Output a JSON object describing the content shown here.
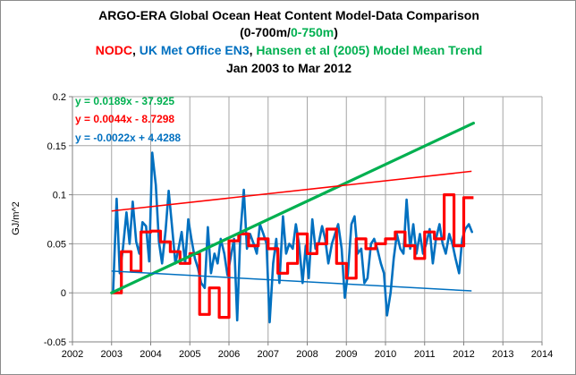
{
  "chart_data": {
    "type": "line",
    "title_line1": "ARGO-ERA Global Ocean Heat Content Model-Data Comparison",
    "title_line2": {
      "open": "(",
      "nodc_range": "0-700m",
      "slash": "/",
      "model_range": "0-750m",
      "close": ")"
    },
    "title_line3": {
      "nodc": "NODC",
      "sep1": ", ",
      "ukmo": "UK Met Office EN3",
      "sep2": ", ",
      "model": "Hansen et al (2005) Model Mean Trend"
    },
    "title_line4": "Jan 2003 to Mar 2012",
    "ylabel": "GJ/m^2",
    "xlabel": "",
    "xlim": [
      2002,
      2014
    ],
    "ylim": [
      -0.05,
      0.2
    ],
    "x_ticks": [
      "2002",
      "2003",
      "2004",
      "2005",
      "2006",
      "2007",
      "2008",
      "2009",
      "2010",
      "2011",
      "2012",
      "2013",
      "2014"
    ],
    "y_ticks": [
      "-0.05",
      "0",
      "0.05",
      "0.1",
      "0.15",
      "0.2"
    ],
    "gridlines": true,
    "colors": {
      "nodc": "#ff0000",
      "en3": "#0070c0",
      "model": "#00b050",
      "nodc_trend": "#ff0000",
      "en3_trend": "#0070c0",
      "grid": "#a6a6a6"
    },
    "trend_equations": [
      {
        "series": "model",
        "text": "y = 0.0189x - 37.925"
      },
      {
        "series": "nodc",
        "text": "y = 0.0044x - 8.7298"
      },
      {
        "series": "en3",
        "text": "y = -0.0022x + 4.4288"
      }
    ],
    "series": [
      {
        "name": "UK Met Office EN3",
        "color": "#0070c0",
        "x": [
          2003.04,
          2003.13,
          2003.21,
          2003.29,
          2003.38,
          2003.46,
          2003.54,
          2003.63,
          2003.71,
          2003.79,
          2003.88,
          2003.96,
          2004.04,
          2004.13,
          2004.21,
          2004.29,
          2004.38,
          2004.46,
          2004.54,
          2004.63,
          2004.71,
          2004.79,
          2004.88,
          2004.96,
          2005.04,
          2005.13,
          2005.21,
          2005.29,
          2005.38,
          2005.46,
          2005.54,
          2005.63,
          2005.71,
          2005.79,
          2005.88,
          2005.96,
          2006.04,
          2006.13,
          2006.21,
          2006.29,
          2006.38,
          2006.46,
          2006.54,
          2006.63,
          2006.71,
          2006.79,
          2006.88,
          2006.96,
          2007.04,
          2007.13,
          2007.21,
          2007.29,
          2007.38,
          2007.46,
          2007.54,
          2007.63,
          2007.71,
          2007.79,
          2007.88,
          2007.96,
          2008.04,
          2008.13,
          2008.21,
          2008.29,
          2008.38,
          2008.46,
          2008.54,
          2008.63,
          2008.71,
          2008.79,
          2008.88,
          2008.96,
          2009.04,
          2009.13,
          2009.21,
          2009.29,
          2009.38,
          2009.46,
          2009.54,
          2009.63,
          2009.71,
          2009.79,
          2009.88,
          2009.96,
          2010.04,
          2010.13,
          2010.21,
          2010.29,
          2010.38,
          2010.46,
          2010.54,
          2010.63,
          2010.71,
          2010.79,
          2010.88,
          2010.96,
          2011.04,
          2011.13,
          2011.21,
          2011.29,
          2011.38,
          2011.46,
          2011.54,
          2011.63,
          2011.71,
          2011.79,
          2011.88,
          2011.96,
          2012.04,
          2012.13,
          2012.21
        ],
        "values": [
          0.002,
          0.096,
          0.02,
          0.045,
          0.082,
          0.05,
          0.093,
          0.052,
          0.04,
          0.072,
          0.068,
          0.032,
          0.143,
          0.11,
          0.052,
          0.03,
          0.063,
          0.104,
          0.07,
          0.03,
          0.045,
          0.062,
          0.03,
          0.075,
          0.055,
          0.035,
          0.025,
          0.01,
          0.005,
          0.067,
          0.02,
          0.04,
          0.03,
          0.055,
          0.04,
          0.018,
          0.035,
          0.055,
          -0.028,
          0.06,
          0.105,
          0.045,
          0.06,
          0.05,
          0.04,
          0.07,
          0.06,
          0.05,
          -0.03,
          0.03,
          0.055,
          0.01,
          0.078,
          0.04,
          0.05,
          0.045,
          0.07,
          0.05,
          0.01,
          0.048,
          0.015,
          0.075,
          0.045,
          0.05,
          0.068,
          0.055,
          0.03,
          0.05,
          0.06,
          0.07,
          0.045,
          -0.005,
          0.02,
          0.07,
          0.078,
          0.04,
          0.045,
          0.01,
          0.015,
          0.05,
          0.055,
          0.045,
          0.03,
          0.02,
          -0.023,
          0.0,
          0.035,
          0.06,
          0.045,
          0.04,
          0.095,
          0.045,
          0.07,
          0.04,
          0.06,
          0.04,
          0.05,
          0.065,
          0.03,
          0.055,
          0.07,
          0.05,
          0.04,
          0.06,
          0.05,
          0.035,
          0.02,
          0.055,
          0.065,
          0.07,
          0.062
        ]
      },
      {
        "name": "NODC",
        "color": "#ff0000",
        "x": [
          2003.0,
          2003.25,
          2003.5,
          2003.75,
          2004.0,
          2004.25,
          2004.5,
          2004.75,
          2005.0,
          2005.25,
          2005.5,
          2005.75,
          2006.0,
          2006.25,
          2006.5,
          2006.75,
          2007.0,
          2007.25,
          2007.5,
          2007.75,
          2008.0,
          2008.25,
          2008.5,
          2008.75,
          2009.0,
          2009.25,
          2009.5,
          2009.75,
          2010.0,
          2010.25,
          2010.5,
          2010.75,
          2011.0,
          2011.25,
          2011.5,
          2011.75,
          2012.0,
          2012.25
        ],
        "values": [
          0.0,
          0.042,
          0.022,
          0.062,
          0.063,
          0.052,
          0.042,
          0.03,
          0.04,
          -0.022,
          0.005,
          -0.025,
          0.053,
          0.06,
          0.048,
          0.055,
          0.045,
          0.02,
          0.03,
          0.06,
          0.04,
          0.05,
          0.065,
          0.03,
          0.015,
          0.055,
          0.045,
          0.05,
          0.055,
          0.062,
          0.048,
          0.035,
          0.062,
          0.055,
          0.1,
          0.048,
          0.097,
          0.097
        ]
      },
      {
        "name": "Hansen et al (2005) Model Mean Trend",
        "color": "#00b050",
        "x": [
          2003.0,
          2012.25
        ],
        "values": [
          0.0,
          0.173
        ]
      }
    ]
  }
}
